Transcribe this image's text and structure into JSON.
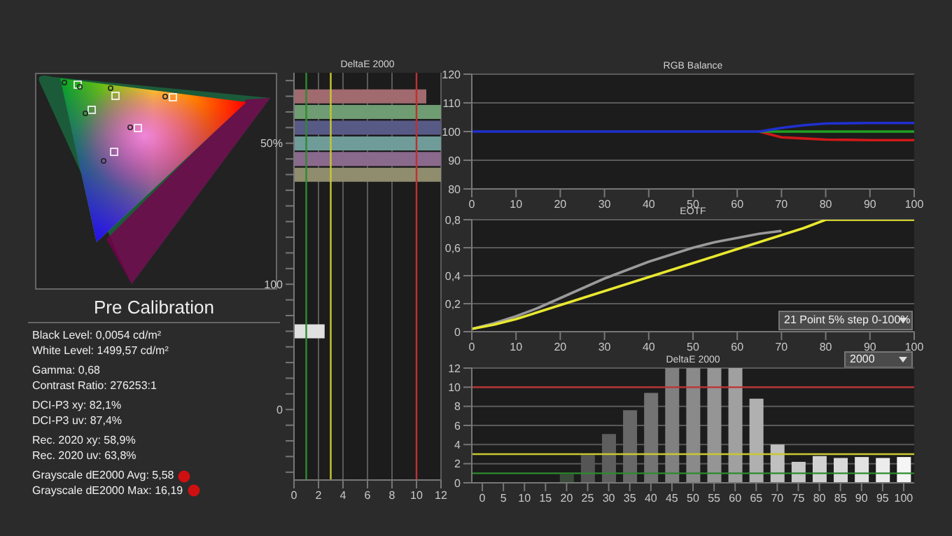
{
  "chart_data": [
    {
      "type": "other",
      "title": "Pre Calibration",
      "annotations": [
        "Black Level: 0,0054 cd/m²",
        "White Level: 1499,57 cd/m²",
        "Gamma: 0,68",
        "Contrast Ratio: 276253:1",
        "DCI-P3 xy: 82,1%",
        "DCI-P3 uv: 87,4%",
        "Rec. 2020 xy: 58,9%",
        "Rec. 2020 uv: 63,8%",
        "Grayscale dE2000 Avg: 5,58",
        "Grayscale dE2000 Max: 16,19"
      ]
    },
    {
      "type": "bar",
      "orientation": "horizontal",
      "title": "DeltaE 2000",
      "categories": [
        null,
        null,
        null,
        null,
        "50%",
        null,
        null,
        null,
        null,
        null,
        null,
        null,
        null,
        "100",
        null,
        null,
        null,
        null,
        null,
        null,
        null,
        "0",
        null,
        null,
        null,
        null
      ],
      "values": [
        null,
        10.8,
        12,
        12,
        12,
        12,
        12,
        null,
        null,
        null,
        null,
        null,
        null,
        null,
        null,
        null,
        2.5,
        null,
        null,
        null,
        null,
        null,
        null,
        null,
        null,
        null
      ],
      "colors": [
        "#888888",
        "#a06a6e",
        "#6f9c72",
        "#585a86",
        "#6f9c98",
        "#8a6a8c",
        "#8f8d6e",
        "#888888",
        "#888888",
        "#888888",
        "#888888",
        "#888888",
        "#888888",
        "#888888",
        "#888888",
        "#888888",
        "#e0e0e0",
        "#888888",
        "#888888",
        "#888888",
        "#888888",
        "#888888",
        "#888888",
        "#888888",
        "#888888",
        "#888888"
      ],
      "xlim": [
        0,
        12
      ],
      "xticks": [
        0,
        2,
        4,
        6,
        8,
        10,
        12
      ],
      "grid": "x",
      "ref_lines": [
        {
          "axis": "x",
          "value": 1,
          "color": "#2e8b2e"
        },
        {
          "axis": "x",
          "value": 3,
          "color": "#c8c832"
        },
        {
          "axis": "x",
          "value": 10,
          "color": "#c03030"
        }
      ]
    },
    {
      "type": "line",
      "title": "RGB Balance",
      "x": [
        0,
        5,
        10,
        15,
        20,
        25,
        30,
        35,
        40,
        45,
        50,
        55,
        60,
        65,
        70,
        75,
        80,
        85,
        90,
        95,
        100
      ],
      "series": [
        {
          "color": "#d01818",
          "values": [
            null,
            null,
            null,
            null,
            null,
            null,
            null,
            null,
            null,
            null,
            null,
            null,
            null,
            100,
            98,
            97.6,
            97.2,
            97.1,
            97,
            97,
            97
          ]
        },
        {
          "color": "#20a020",
          "values": [
            null,
            null,
            null,
            null,
            null,
            null,
            null,
            null,
            null,
            null,
            null,
            null,
            null,
            100,
            100,
            100,
            100,
            100,
            100,
            100,
            100
          ]
        },
        {
          "color": "#2030d0",
          "values": [
            100,
            100,
            100,
            100,
            100,
            100,
            100,
            100,
            100,
            100,
            100,
            100,
            100,
            100,
            101.3,
            102.2,
            102.8,
            102.9,
            103,
            103,
            103
          ]
        }
      ],
      "xlim": [
        0,
        100
      ],
      "xticks": [
        0,
        10,
        20,
        30,
        40,
        50,
        60,
        70,
        80,
        90,
        100
      ],
      "ylim": [
        80,
        120
      ],
      "yticks": [
        80,
        90,
        100,
        110,
        120
      ],
      "grid": "y"
    },
    {
      "type": "line",
      "title": "EOTF",
      "x": [
        0,
        5,
        10,
        15,
        20,
        25,
        30,
        35,
        40,
        45,
        50,
        55,
        60,
        65,
        70,
        75,
        80,
        85,
        90,
        95,
        100
      ],
      "series": [
        {
          "color": "#9a9a9a",
          "values": [
            0.02,
            0.06,
            0.11,
            0.17,
            0.24,
            0.31,
            0.38,
            0.44,
            0.5,
            0.55,
            0.6,
            0.64,
            0.67,
            0.7,
            0.72,
            null,
            null,
            null,
            null,
            null,
            null
          ]
        },
        {
          "color": "#e8e830",
          "values": [
            0.02,
            0.05,
            0.09,
            0.14,
            0.19,
            0.24,
            0.29,
            0.34,
            0.39,
            0.44,
            0.49,
            0.54,
            0.59,
            0.64,
            0.69,
            0.74,
            0.8,
            0.8,
            0.8,
            0.8,
            0.8
          ]
        }
      ],
      "xlim": [
        0,
        100
      ],
      "xticks": [
        0,
        10,
        20,
        30,
        40,
        50,
        60,
        70,
        80,
        90,
        100
      ],
      "ylim": [
        0,
        0.8
      ],
      "yticks": [
        0,
        {
          "value": 0.2,
          "label": "0,2"
        },
        {
          "value": 0.4,
          "label": "0,4"
        },
        {
          "value": 0.6,
          "label": "0,6"
        },
        {
          "value": 0.8,
          "label": "0,8"
        }
      ],
      "grid": "y",
      "annotations": [
        "21 Point 5% step 0-100%",
        "2000"
      ]
    },
    {
      "type": "bar",
      "title": "DeltaE 2000",
      "categories": [
        "0",
        "5",
        "10",
        "15",
        "20",
        "25",
        "30",
        "35",
        "40",
        "45",
        "50",
        "55",
        "60",
        "65",
        "70",
        "75",
        "80",
        "85",
        "90",
        "95",
        "100"
      ],
      "values": [
        0,
        0,
        0,
        0,
        0.9,
        2.9,
        5.1,
        7.6,
        9.4,
        12,
        12,
        12,
        12,
        8.8,
        4,
        2.2,
        2.8,
        2.6,
        2.7,
        2.6,
        2.7
      ],
      "colors": [
        "#333333",
        "#333333",
        "#333333",
        "#333333",
        "#3c4c3c",
        "#555555",
        "#5e5e5e",
        "#686868",
        "#737373",
        "#808080",
        "#8a8a8a",
        "#959595",
        "#a0a0a0",
        "#b0b0b0",
        "#c0c0c0",
        "#c8c8c8",
        "#d2d2d2",
        "#dadada",
        "#e2e2e2",
        "#ececec",
        "#f5f5f5"
      ],
      "ylim": [
        0,
        12
      ],
      "yticks": [
        0,
        2,
        4,
        6,
        8,
        10,
        12
      ],
      "grid": "y",
      "ref_lines": [
        {
          "axis": "y",
          "value": 1,
          "color": "#2e8b2e"
        },
        {
          "axis": "y",
          "value": 3,
          "color": "#c8c832"
        },
        {
          "axis": "y",
          "value": 10,
          "color": "#c03030"
        }
      ]
    }
  ]
}
